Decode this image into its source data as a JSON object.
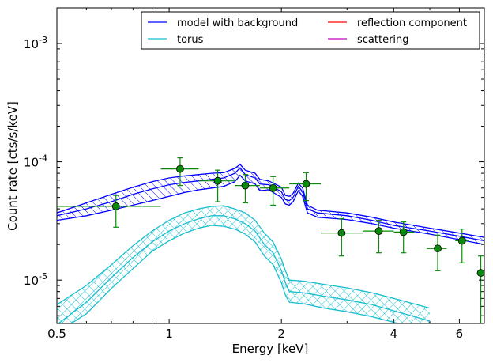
{
  "chart_data": {
    "type": "line",
    "xlabel": "Energy [keV]",
    "ylabel": "Count rate [cts/s/keV]",
    "xscale": "log",
    "yscale": "log",
    "xlim": [
      0.5,
      7.0
    ],
    "ylim": [
      4.3e-06,
      0.002
    ],
    "x_ticks": [
      {
        "value": 0.5,
        "label": "0.5"
      },
      {
        "value": 1,
        "label": "1"
      },
      {
        "value": 2,
        "label": "2"
      },
      {
        "value": 4,
        "label": "4"
      },
      {
        "value": 6,
        "label": "6"
      }
    ],
    "y_ticks": [
      {
        "value": 1e-05,
        "base": "10",
        "exp": "-5"
      },
      {
        "value": 0.0001,
        "base": "10",
        "exp": "-4"
      },
      {
        "value": 0.001,
        "base": "10",
        "exp": "-3"
      }
    ],
    "legend": {
      "placement": "top-right",
      "columns": 2,
      "entries": [
        {
          "label": "model with background",
          "color": "#0000ff"
        },
        {
          "label": "torus",
          "color": "#17becf"
        },
        {
          "label": "reflection component",
          "color": "#ff0000"
        },
        {
          "label": "scattering",
          "color": "#bf00bf"
        }
      ]
    },
    "series": [
      {
        "name": "model with background",
        "color": "#0000ff",
        "band": "hatched",
        "points": [
          [
            0.5,
            3.5e-05
          ],
          [
            0.6,
            4e-05
          ],
          [
            0.7,
            4.6e-05
          ],
          [
            0.8,
            5.3e-05
          ],
          [
            0.9,
            5.9e-05
          ],
          [
            1.0,
            6.4e-05
          ],
          [
            1.1,
            6.7e-05
          ],
          [
            1.2,
            6.9e-05
          ],
          [
            1.3,
            7.1e-05
          ],
          [
            1.4,
            7.3e-05
          ],
          [
            1.5,
            8e-05
          ],
          [
            1.55,
            8.9e-05
          ],
          [
            1.6,
            7.8e-05
          ],
          [
            1.7,
            7.3e-05
          ],
          [
            1.75,
            6.5e-05
          ],
          [
            1.85,
            6.4e-05
          ],
          [
            2.0,
            5.6e-05
          ],
          [
            2.05,
            4.8e-05
          ],
          [
            2.1,
            4.7e-05
          ],
          [
            2.15,
            5e-05
          ],
          [
            2.22,
            6.2e-05
          ],
          [
            2.28,
            5.6e-05
          ],
          [
            2.35,
            4e-05
          ],
          [
            2.5,
            3.7e-05
          ],
          [
            3.0,
            3.5e-05
          ],
          [
            3.5,
            3.2e-05
          ],
          [
            4.0,
            2.9e-05
          ],
          [
            5.0,
            2.6e-05
          ],
          [
            6.0,
            2.35e-05
          ],
          [
            7.0,
            2.15e-05
          ]
        ],
        "band_lower": [
          [
            0.5,
            3.2e-05
          ],
          [
            0.6,
            3.5e-05
          ],
          [
            0.7,
            3.9e-05
          ],
          [
            0.8,
            4.3e-05
          ],
          [
            0.9,
            4.7e-05
          ],
          [
            1.0,
            5.1e-05
          ],
          [
            1.1,
            5.5e-05
          ],
          [
            1.2,
            5.8e-05
          ],
          [
            1.3,
            6e-05
          ],
          [
            1.4,
            6.2e-05
          ],
          [
            1.5,
            6.8e-05
          ],
          [
            1.55,
            7.7e-05
          ],
          [
            1.6,
            6.9e-05
          ],
          [
            1.7,
            6.5e-05
          ],
          [
            1.75,
            5.7e-05
          ],
          [
            1.85,
            5.8e-05
          ],
          [
            2.0,
            5e-05
          ],
          [
            2.05,
            4.4e-05
          ],
          [
            2.1,
            4.3e-05
          ],
          [
            2.15,
            4.6e-05
          ],
          [
            2.22,
            5.7e-05
          ],
          [
            2.28,
            5.1e-05
          ],
          [
            2.35,
            3.7e-05
          ],
          [
            2.5,
            3.4e-05
          ],
          [
            3.0,
            3.25e-05
          ],
          [
            3.5,
            3e-05
          ],
          [
            4.0,
            2.75e-05
          ],
          [
            5.0,
            2.45e-05
          ],
          [
            6.0,
            2.2e-05
          ],
          [
            7.0,
            2e-05
          ]
        ],
        "band_upper": [
          [
            0.5,
            3.7e-05
          ],
          [
            0.6,
            4.5e-05
          ],
          [
            0.7,
            5.3e-05
          ],
          [
            0.8,
            6.1e-05
          ],
          [
            0.9,
            6.8e-05
          ],
          [
            1.0,
            7.3e-05
          ],
          [
            1.1,
            7.6e-05
          ],
          [
            1.2,
            7.8e-05
          ],
          [
            1.3,
            8e-05
          ],
          [
            1.4,
            8.1e-05
          ],
          [
            1.5,
            8.8e-05
          ],
          [
            1.55,
            9.5e-05
          ],
          [
            1.6,
            8.5e-05
          ],
          [
            1.7,
            8e-05
          ],
          [
            1.75,
            7.1e-05
          ],
          [
            1.85,
            6.9e-05
          ],
          [
            2.0,
            6.1e-05
          ],
          [
            2.05,
            5.2e-05
          ],
          [
            2.1,
            5.1e-05
          ],
          [
            2.15,
            5.4e-05
          ],
          [
            2.22,
            6.6e-05
          ],
          [
            2.28,
            6e-05
          ],
          [
            2.35,
            4.3e-05
          ],
          [
            2.5,
            3.9e-05
          ],
          [
            3.0,
            3.7e-05
          ],
          [
            3.5,
            3.4e-05
          ],
          [
            4.0,
            3.1e-05
          ],
          [
            5.0,
            2.75e-05
          ],
          [
            6.0,
            2.5e-05
          ],
          [
            7.0,
            2.3e-05
          ]
        ]
      },
      {
        "name": "torus",
        "color": "#17becf",
        "band": "crosshatched",
        "points": [
          [
            0.5,
            4.2e-06
          ],
          [
            0.6,
            6.5e-06
          ],
          [
            0.7,
            1.05e-05
          ],
          [
            0.8,
            1.55e-05
          ],
          [
            0.9,
            2.1e-05
          ],
          [
            1.0,
            2.6e-05
          ],
          [
            1.1,
            3e-05
          ],
          [
            1.2,
            3.3e-05
          ],
          [
            1.3,
            3.5e-05
          ],
          [
            1.4,
            3.5e-05
          ],
          [
            1.5,
            3.3e-05
          ],
          [
            1.6,
            3e-05
          ],
          [
            1.7,
            2.6e-05
          ],
          [
            1.8,
            2e-05
          ],
          [
            1.9,
            1.7e-05
          ],
          [
            2.0,
            1.2e-05
          ],
          [
            2.05,
            9.5e-06
          ],
          [
            2.1,
            8e-06
          ],
          [
            2.3,
            7.8e-06
          ],
          [
            2.6,
            7.3e-06
          ],
          [
            3.0,
            6.8e-06
          ],
          [
            3.5,
            6.2e-06
          ],
          [
            4.0,
            5.5e-06
          ],
          [
            5.0,
            4.5e-06
          ]
        ],
        "band_lower": [
          [
            0.5,
            3.6e-06
          ],
          [
            0.6,
            5.2e-06
          ],
          [
            0.7,
            8.5e-06
          ],
          [
            0.8,
            1.25e-05
          ],
          [
            0.9,
            1.75e-05
          ],
          [
            1.0,
            2.15e-05
          ],
          [
            1.1,
            2.5e-05
          ],
          [
            1.2,
            2.75e-05
          ],
          [
            1.3,
            2.9e-05
          ],
          [
            1.4,
            2.85e-05
          ],
          [
            1.5,
            2.7e-05
          ],
          [
            1.6,
            2.45e-05
          ],
          [
            1.7,
            2.1e-05
          ],
          [
            1.8,
            1.6e-05
          ],
          [
            1.9,
            1.35e-05
          ],
          [
            2.0,
            9.5e-06
          ],
          [
            2.05,
            7.5e-06
          ],
          [
            2.1,
            6.5e-06
          ],
          [
            2.3,
            6.3e-06
          ],
          [
            2.6,
            5.8e-06
          ],
          [
            3.0,
            5.4e-06
          ],
          [
            3.5,
            4.9e-06
          ],
          [
            4.0,
            4.4e-06
          ],
          [
            5.0,
            3.6e-06
          ]
        ],
        "band_upper": [
          [
            0.5,
            6.2e-06
          ],
          [
            0.6,
            9e-06
          ],
          [
            0.7,
            1.35e-05
          ],
          [
            0.8,
            1.95e-05
          ],
          [
            0.9,
            2.6e-05
          ],
          [
            1.0,
            3.2e-05
          ],
          [
            1.1,
            3.7e-05
          ],
          [
            1.2,
            4e-05
          ],
          [
            1.3,
            4.2e-05
          ],
          [
            1.4,
            4.25e-05
          ],
          [
            1.5,
            4e-05
          ],
          [
            1.6,
            3.7e-05
          ],
          [
            1.7,
            3.2e-05
          ],
          [
            1.8,
            2.5e-05
          ],
          [
            1.9,
            2.1e-05
          ],
          [
            2.0,
            1.5e-05
          ],
          [
            2.05,
            1.2e-05
          ],
          [
            2.1,
            1e-05
          ],
          [
            2.3,
            9.8e-06
          ],
          [
            2.6,
            9.2e-06
          ],
          [
            3.0,
            8.6e-06
          ],
          [
            3.5,
            7.8e-06
          ],
          [
            4.0,
            7e-06
          ],
          [
            5.0,
            5.8e-06
          ]
        ]
      }
    ],
    "data_points": {
      "color": "#0a8a0a",
      "points": [
        {
          "x": 0.72,
          "y": 4.2e-05,
          "xlo": 0.5,
          "xhi": 0.95,
          "ylo": 2.8e-05,
          "yhi": 5.2e-05
        },
        {
          "x": 1.07,
          "y": 8.7e-05,
          "xlo": 0.95,
          "xhi": 1.2,
          "ylo": 6.3e-05,
          "yhi": 0.000108
        },
        {
          "x": 1.35,
          "y": 6.9e-05,
          "xlo": 1.2,
          "xhi": 1.5,
          "ylo": 4.6e-05,
          "yhi": 8.5e-05
        },
        {
          "x": 1.6,
          "y": 6.3e-05,
          "xlo": 1.5,
          "xhi": 1.75,
          "ylo": 4.5e-05,
          "yhi": 7.8e-05
        },
        {
          "x": 1.9,
          "y": 6e-05,
          "xlo": 1.75,
          "xhi": 2.1,
          "ylo": 4.3e-05,
          "yhi": 7.5e-05
        },
        {
          "x": 2.33,
          "y": 6.5e-05,
          "xlo": 2.1,
          "xhi": 2.55,
          "ylo": 4.7e-05,
          "yhi": 8.1e-05
        },
        {
          "x": 2.9,
          "y": 2.5e-05,
          "xlo": 2.55,
          "xhi": 3.3,
          "ylo": 1.6e-05,
          "yhi": 3.3e-05
        },
        {
          "x": 3.65,
          "y": 2.6e-05,
          "xlo": 3.3,
          "xhi": 4.0,
          "ylo": 1.7e-05,
          "yhi": 3.2e-05
        },
        {
          "x": 4.25,
          "y": 2.55e-05,
          "xlo": 4.0,
          "xhi": 4.55,
          "ylo": 1.7e-05,
          "yhi": 3.1e-05
        },
        {
          "x": 5.25,
          "y": 1.85e-05,
          "xlo": 4.9,
          "xhi": 5.55,
          "ylo": 1.2e-05,
          "yhi": 2.4e-05
        },
        {
          "x": 6.1,
          "y": 2.15e-05,
          "xlo": 5.85,
          "xhi": 6.35,
          "ylo": 1.4e-05,
          "yhi": 2.7e-05
        },
        {
          "x": 6.85,
          "y": 1.15e-05,
          "xlo": 6.75,
          "xhi": 7.0,
          "ylo": 4.3e-06,
          "yhi": 1.6e-05
        }
      ]
    }
  }
}
